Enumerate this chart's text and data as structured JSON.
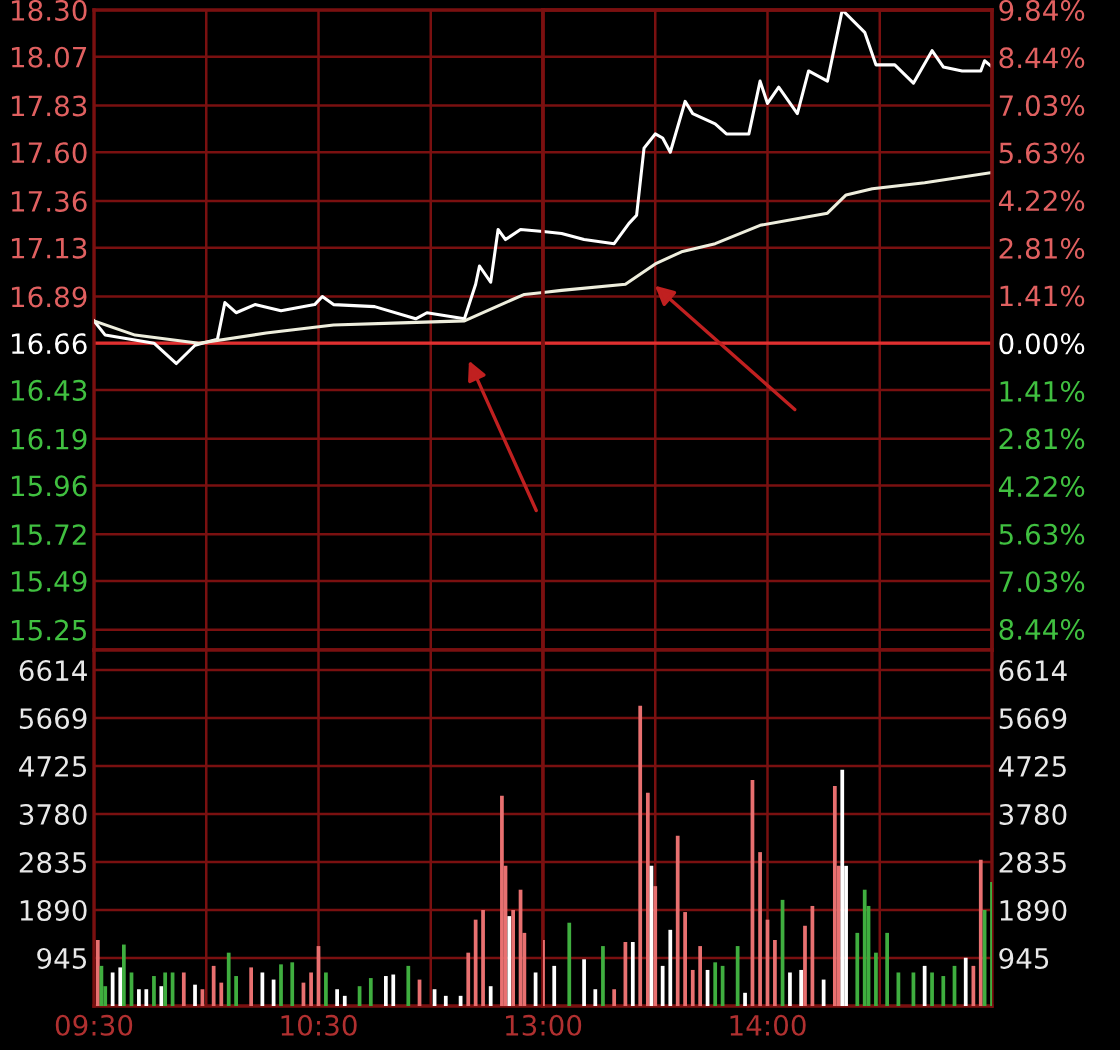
{
  "chart_data": [
    {
      "type": "line",
      "series": [
        {
          "color": "#ffffff",
          "x": [
            9.5,
            9.55,
            9.767,
            9.867,
            9.95,
            10.05,
            10.083,
            10.133,
            10.217,
            10.333,
            10.483,
            10.517,
            10.567,
            10.75,
            10.933,
            10.983,
            11.15,
            11.2,
            11.217,
            11.267,
            11.3,
            11.333,
            11.4,
            11.5
          ],
          "values": [
            16.77,
            16.7,
            16.66,
            16.56,
            16.65,
            16.68,
            16.86,
            16.81,
            16.85,
            16.82,
            16.85,
            16.89,
            16.85,
            16.84,
            16.78,
            16.81,
            16.78,
            16.95,
            17.04,
            16.96,
            17.22,
            17.17,
            17.22,
            17.21
          ]
        },
        {
          "color": "#eeeedd",
          "x": [
            9.5,
            9.683,
            9.967,
            10.267,
            10.567,
            10.867,
            11.15,
            11.333,
            11.417,
            11.5
          ],
          "values": [
            16.77,
            16.7,
            16.66,
            16.71,
            16.75,
            16.76,
            16.77,
            16.86,
            16.9,
            16.91
          ]
        }
      ],
      "xlim": [
        9.5,
        11.5
      ],
      "xticks": [
        9.5,
        10,
        10.5,
        11
      ],
      "ylim": [
        15.15,
        18.3
      ],
      "yticks": [
        {
          "value": 18.3,
          "label": "18.30"
        },
        18.07,
        17.83,
        {
          "value": 17.6,
          "label": "17.60"
        },
        17.36,
        17.13,
        16.89,
        16.66,
        16.43,
        16.19,
        15.96,
        15.72,
        15.49,
        15.25
      ],
      "ref_lines": [
        {
          "axis": "y",
          "value": 16.66,
          "color": "#e03030"
        }
      ],
      "grid": true,
      "tick_labels": "y"
    },
    {
      "type": "line",
      "series": [
        {
          "color": "#ffffff",
          "x": [
            13.0,
            13.083,
            13.183,
            13.317,
            13.383,
            13.417,
            13.45,
            13.5,
            13.533,
            13.567,
            13.633,
            13.667,
            13.767,
            13.817,
            13.917,
            13.967,
            14.0,
            14.05,
            14.133,
            14.183,
            14.267,
            14.333,
            14.433,
            14.483,
            14.567,
            14.65,
            14.733,
            14.783,
            14.867,
            14.95,
            14.967,
            15.0
          ],
          "values": [
            17.21,
            17.2,
            17.17,
            17.15,
            17.25,
            17.29,
            17.62,
            17.69,
            17.67,
            17.6,
            17.85,
            17.79,
            17.74,
            17.69,
            17.69,
            17.95,
            17.84,
            17.92,
            17.79,
            18.0,
            17.95,
            18.3,
            18.19,
            18.03,
            18.03,
            17.94,
            18.1,
            18.02,
            18.0,
            18.0,
            18.05,
            18.02
          ]
        },
        {
          "color": "#eeeedd",
          "x": [
            13.0,
            13.083,
            13.367,
            13.5,
            13.617,
            13.767,
            13.967,
            14.267,
            14.35,
            14.467,
            14.7,
            15.0
          ],
          "values": [
            16.91,
            16.92,
            16.95,
            17.05,
            17.11,
            17.15,
            17.24,
            17.3,
            17.39,
            17.42,
            17.45,
            17.5
          ]
        }
      ],
      "xlim": [
        13.0,
        15.0
      ],
      "xticks": [
        13,
        13.5,
        14,
        14.5,
        15
      ],
      "ylim": [
        15.15,
        18.3
      ],
      "yticks": [
        18.3,
        18.07,
        17.83,
        17.6,
        17.36,
        17.13,
        16.89,
        16.66,
        16.43,
        16.19,
        15.96,
        15.72,
        15.49,
        15.25
      ],
      "y2lim": [
        -9.06,
        9.84
      ],
      "y2ticks": [
        {
          "value": 9.84,
          "label": "9.84%"
        },
        {
          "value": 8.44,
          "label": "8.44%"
        },
        {
          "value": 7.03,
          "label": "7.03%"
        },
        {
          "value": 5.63,
          "label": "5.63%"
        },
        {
          "value": 4.22,
          "label": "4.22%"
        },
        {
          "value": 2.81,
          "label": "2.81%"
        },
        {
          "value": 1.41,
          "label": "1.41%"
        },
        {
          "value": 0,
          "label": "0.00%"
        },
        {
          "value": -1.41,
          "label": "1.41%"
        },
        {
          "value": -2.81,
          "label": "2.81%"
        },
        {
          "value": -4.22,
          "label": "4.22%"
        },
        {
          "value": -5.63,
          "label": "5.63%"
        },
        {
          "value": -7.03,
          "label": "7.03%"
        },
        {
          "value": -8.44,
          "label": "8.44%"
        }
      ],
      "ref_lines": [
        {
          "axis": "y",
          "value": 16.66,
          "color": "#e03030"
        }
      ],
      "grid": true,
      "tick_labels": false
    },
    {
      "type": "bar",
      "x": [
        9.517,
        9.533,
        9.55,
        9.583,
        9.617,
        9.633,
        9.667,
        9.7,
        9.733,
        9.767,
        9.8,
        9.817,
        9.85,
        9.9,
        9.95,
        9.983,
        10.033,
        10.067,
        10.1,
        10.133,
        10.2,
        10.25,
        10.3,
        10.333,
        10.383,
        10.433,
        10.467,
        10.5,
        10.533,
        10.583,
        10.617,
        10.683,
        10.733,
        10.8,
        10.833,
        10.9,
        10.95,
        11.017,
        11.067,
        11.133,
        11.167,
        11.2,
        11.233,
        11.267,
        11.317,
        11.333,
        11.35,
        11.367,
        11.4,
        11.417,
        11.467
      ],
      "values": [
        1300,
        790,
        390,
        660,
        760,
        1210,
        660,
        330,
        330,
        590,
        390,
        660,
        660,
        660,
        420,
        330,
        790,
        460,
        1050,
        590,
        760,
        660,
        520,
        820,
        860,
        460,
        660,
        1180,
        660,
        330,
        200,
        390,
        550,
        590,
        620,
        790,
        520,
        330,
        200,
        200,
        1050,
        1700,
        1890,
        390,
        4140,
        2760,
        1770,
        1890,
        2290,
        1440,
        660
      ],
      "colors": [
        "#e87070",
        "#3fae3f",
        "#3fae3f",
        "#ffffff",
        "#ffffff",
        "#3fae3f",
        "#3fae3f",
        "#ffffff",
        "#ffffff",
        "#3fae3f",
        "#ffffff",
        "#3fae3f",
        "#3fae3f",
        "#e87070",
        "#ffffff",
        "#e87070",
        "#e87070",
        "#e87070",
        "#3fae3f",
        "#3fae3f",
        "#e87070",
        "#ffffff",
        "#ffffff",
        "#3fae3f",
        "#3fae3f",
        "#e87070",
        "#e87070",
        "#e87070",
        "#3fae3f",
        "#ffffff",
        "#ffffff",
        "#3fae3f",
        "#3fae3f",
        "#ffffff",
        "#ffffff",
        "#3fae3f",
        "#e87070",
        "#ffffff",
        "#ffffff",
        "#ffffff",
        "#e87070",
        "#e87070",
        "#e87070",
        "#ffffff",
        "#e87070",
        "#e87070",
        "#ffffff",
        "#e87070",
        "#e87070",
        "#e87070",
        "#ffffff"
      ],
      "xlim": [
        9.5,
        11.5
      ],
      "xticks": [
        {
          "value": 9.5,
          "label": "09:30"
        },
        {
          "value": 10.0,
          "label": null
        },
        {
          "value": 10.5,
          "label": "10:30"
        },
        {
          "value": 11.0,
          "label": null
        }
      ],
      "ylim": [
        0,
        7010
      ],
      "yticks": [
        945,
        1890,
        2835,
        3780,
        4725,
        5669,
        6614
      ],
      "grid": true
    },
    {
      "type": "bar",
      "x": [
        13.0,
        13.05,
        13.117,
        13.183,
        13.233,
        13.267,
        13.317,
        13.367,
        13.4,
        13.433,
        13.467,
        13.483,
        13.5,
        13.533,
        13.567,
        13.6,
        13.633,
        13.667,
        13.7,
        13.733,
        13.767,
        13.8,
        13.867,
        13.9,
        13.933,
        13.967,
        14.0,
        14.033,
        14.067,
        14.1,
        14.15,
        14.167,
        14.2,
        14.25,
        14.3,
        14.317,
        14.333,
        14.35,
        14.4,
        14.433,
        14.45,
        14.483,
        14.533,
        14.583,
        14.65,
        14.7,
        14.733,
        14.783,
        14.833,
        14.883,
        14.917,
        14.95,
        14.967,
        15.0
      ],
      "values": [
        1300,
        790,
        1640,
        920,
        330,
        1180,
        330,
        1260,
        1260,
        5910,
        4200,
        2760,
        2360,
        790,
        1500,
        3350,
        1850,
        710,
        1180,
        710,
        860,
        790,
        1180,
        260,
        4450,
        3030,
        1700,
        1300,
        2090,
        660,
        710,
        1580,
        1970,
        520,
        4330,
        2760,
        4650,
        2760,
        1440,
        2290,
        1970,
        1050,
        1440,
        660,
        660,
        790,
        660,
        590,
        790,
        950,
        790,
        2880,
        1890,
        2440
      ],
      "colors": [
        "#e87070",
        "#ffffff",
        "#3fae3f",
        "#ffffff",
        "#ffffff",
        "#3fae3f",
        "#e87070",
        "#e87070",
        "#ffffff",
        "#e87070",
        "#e87070",
        "#ffffff",
        "#e87070",
        "#ffffff",
        "#ffffff",
        "#e87070",
        "#e87070",
        "#e87070",
        "#e87070",
        "#ffffff",
        "#3fae3f",
        "#3fae3f",
        "#3fae3f",
        "#ffffff",
        "#e87070",
        "#e87070",
        "#e87070",
        "#e87070",
        "#3fae3f",
        "#ffffff",
        "#ffffff",
        "#e87070",
        "#e87070",
        "#ffffff",
        "#e87070",
        "#e87070",
        "#ffffff",
        "#ffffff",
        "#3fae3f",
        "#3fae3f",
        "#3fae3f",
        "#3fae3f",
        "#3fae3f",
        "#3fae3f",
        "#3fae3f",
        "#ffffff",
        "#3fae3f",
        "#3fae3f",
        "#3fae3f",
        "#ffffff",
        "#e87070",
        "#e87070",
        "#3fae3f",
        "#3fae3f"
      ],
      "xlim": [
        13.0,
        15.0
      ],
      "xticks": [
        {
          "value": 13.0,
          "label": "13:00"
        },
        {
          "value": 13.5,
          "label": null
        },
        {
          "value": 14.0,
          "label": "14:00"
        },
        {
          "value": 14.5,
          "label": null
        },
        {
          "value": 15.0,
          "label": null
        }
      ],
      "ylim": [
        0,
        7010
      ],
      "yticks": [
        945,
        1890,
        2835,
        3780,
        4725,
        5669,
        6614
      ],
      "grid": true
    }
  ]
}
